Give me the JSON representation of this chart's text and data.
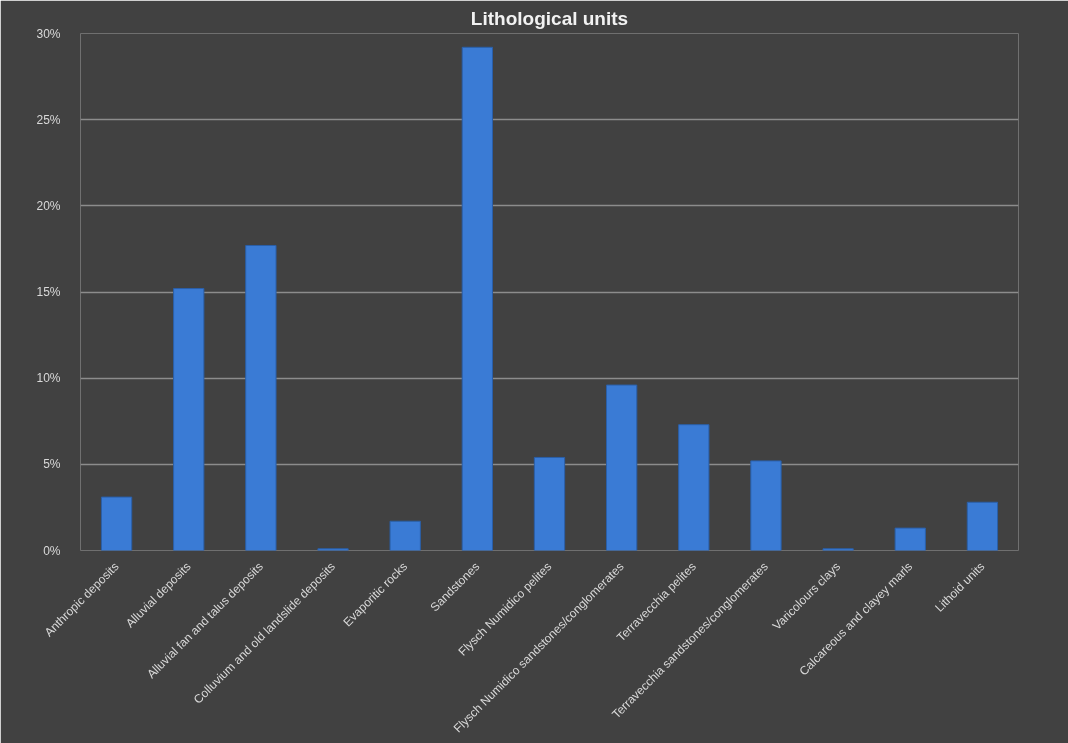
{
  "chart_data": {
    "type": "bar",
    "title": "Lithological units",
    "categories": [
      "Anthropic deposits",
      "Alluvial deposits",
      "Alluvial fan and talus deposits",
      "Colluvium and old landslide deposits",
      "Evaporitic rocks",
      "Sandstones",
      "Flysch Numidico pelites",
      "Flysch Numidico sandstones/conglomerates",
      "Terravecchia pelites",
      "Terravecchia sandstones/conglomerates",
      "Varicolours clays",
      "Calcareous and clayey marls",
      "Lithoid units"
    ],
    "values": [
      3.1,
      15.2,
      17.7,
      0.1,
      1.7,
      29.2,
      5.4,
      9.6,
      7.3,
      5.2,
      0.1,
      1.3,
      2.8
    ],
    "color": "#3a7bd5",
    "ylim": [
      0,
      30
    ],
    "yticks": [
      {
        "value": 0,
        "label": "0%"
      },
      {
        "value": 5,
        "label": "5%"
      },
      {
        "value": 10,
        "label": "10%"
      },
      {
        "value": 15,
        "label": "15%"
      },
      {
        "value": 20,
        "label": "20%"
      },
      {
        "value": 25,
        "label": "25%"
      },
      {
        "value": 30,
        "label": "30%"
      }
    ],
    "grid": "y"
  }
}
